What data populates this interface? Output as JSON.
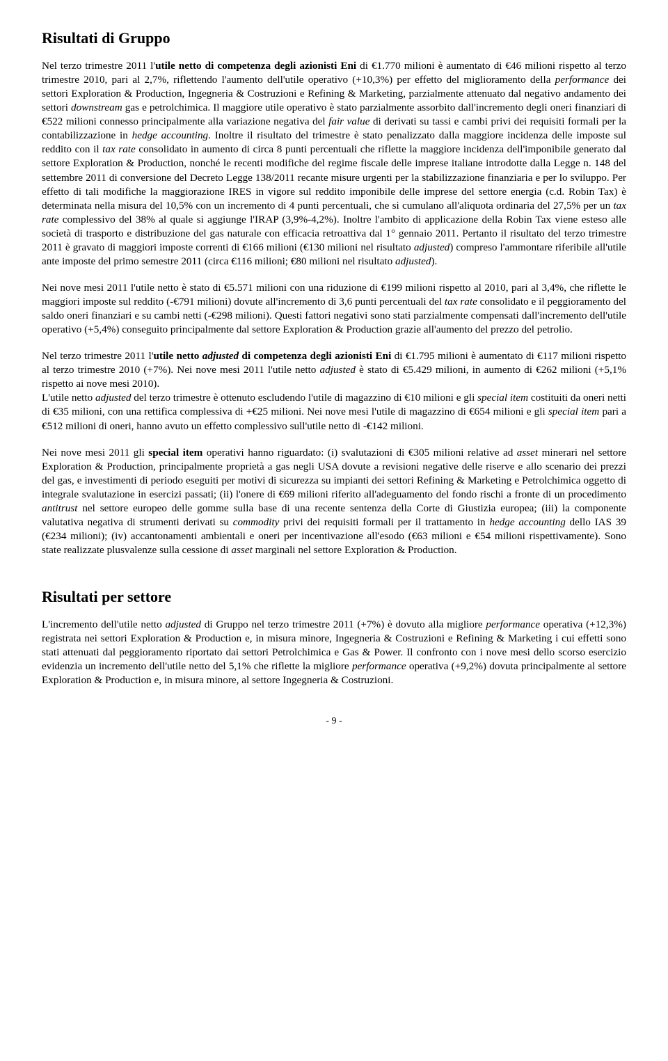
{
  "heading1": "Risultati di Gruppo",
  "para1": "Nel terzo trimestre 2011 l'<b>utile netto di competenza degli azionisti Eni</b> di €1.770 milioni è aumentato di €46 milioni rispetto al terzo trimestre 2010, pari al 2,7%, riflettendo l'aumento dell'utile operativo (+10,3%) per effetto del miglioramento della <i>performance</i> dei settori Exploration & Production, Ingegneria & Costruzioni e Refining & Marketing, parzialmente attenuato dal negativo andamento dei settori <i>downstream</i> gas e petrolchimica. Il maggiore utile operativo è stato parzialmente assorbito dall'incremento degli oneri finanziari di €522 milioni connesso principalmente alla variazione negativa del <i>fair value</i> di derivati su tassi e cambi privi dei requisiti formali per la contabilizzazione in <i>hedge accounting</i>. Inoltre il risultato del trimestre è stato penalizzato dalla maggiore incidenza delle imposte sul reddito con il <i>tax rate</i> consolidato in aumento di circa 8 punti percentuali che riflette la maggiore incidenza dell'imponibile generato dal settore Exploration & Production, nonché le recenti modifiche del regime fiscale delle imprese italiane introdotte dalla Legge n. 148 del settembre 2011 di conversione del Decreto Legge 138/2011 recante misure urgenti per la stabilizzazione finanziaria e per lo sviluppo. Per effetto di tali modifiche la maggiorazione IRES in vigore sul reddito imponibile delle imprese del settore energia (c.d. Robin Tax) è determinata nella misura del 10,5% con un incremento di 4 punti percentuali, che si cumulano all'aliquota ordinaria del 27,5% per un <i>tax rate</i> complessivo del 38% al quale si aggiunge l'IRAP (3,9%-4,2%). Inoltre l'ambito di applicazione della Robin Tax viene esteso alle società di trasporto e distribuzione del gas naturale con efficacia retroattiva dal 1° gennaio 2011. Pertanto il risultato del terzo trimestre 2011 è gravato di maggiori imposte correnti di €166 milioni (€130 milioni nel risultato <i>adjusted</i>) compreso l'ammontare riferibile all'utile ante imposte del primo semestre 2011 (circa €116 milioni; €80 milioni nel risultato <i>adjusted</i>).",
  "para2": "Nei nove mesi 2011 l'utile netto è stato di €5.571 milioni con una riduzione di €199 milioni rispetto al 2010, pari al 3,4%, che riflette le maggiori imposte sul reddito (-€791 milioni) dovute all'incremento di 3,6 punti percentuali del <i>tax rate</i> consolidato e il peggioramento del saldo oneri finanziari e su cambi netti (-€298 milioni). Questi fattori negativi sono stati parzialmente compensati dall'incremento dell'utile operativo (+5,4%) conseguito principalmente dal settore Exploration & Production grazie all'aumento del prezzo del petrolio.",
  "para3": "Nel terzo trimestre 2011 l'<b>utile netto <i>adjusted</i> di competenza degli azionisti Eni</b> di €1.795 milioni è aumentato di €117 milioni rispetto al terzo trimestre 2010 (+7%). Nei nove mesi 2011 l'utile netto <i>adjusted</i> è stato di €5.429 milioni, in aumento di €262 milioni (+5,1% rispetto ai nove mesi 2010).<br>L'utile netto <i>adjusted</i> del terzo trimestre è ottenuto escludendo l'utile di magazzino di €10 milioni e gli <i>special item</i> costituiti da oneri netti di €35 milioni, con una rettifica complessiva di +€25 milioni. Nei nove mesi l'utile di magazzino di €654 milioni e gli <i>special item</i> pari a €512 milioni di oneri, hanno avuto un effetto complessivo sull'utile netto di -€142 milioni.",
  "para4": "Nei nove mesi 2011 gli <b>special item</b> operativi hanno riguardato: (i) svalutazioni di €305 milioni relative ad <i>asset</i> minerari nel settore Exploration & Production, principalmente proprietà a gas negli USA dovute a revisioni negative delle riserve e allo scenario dei prezzi del gas, e investimenti di periodo eseguiti per motivi di sicurezza su impianti dei settori Refining & Marketing e Petrolchimica oggetto di integrale svalutazione in esercizi passati; (ii) l'onere di €69 milioni riferito all'adeguamento del fondo rischi a fronte di un procedimento <i>antitrust</i> nel settore europeo delle gomme sulla base di una recente sentenza della Corte di Giustizia europea; (iii) la componente valutativa negativa di strumenti derivati su <i>commodity</i> privi dei requisiti formali per il trattamento in <i>hedge accounting</i> dello IAS 39 (€234 milioni); (iv) accantonamenti ambientali e oneri per incentivazione all'esodo (€63 milioni e €54 milioni rispettivamente). Sono state realizzate plusvalenze sulla cessione di <i>asset</i> marginali nel settore Exploration & Production.",
  "heading2": "Risultati per settore",
  "para5": "L'incremento dell'utile netto <i>adjusted</i> di Gruppo nel terzo trimestre 2011 (+7%) è dovuto alla migliore <i>performance</i> operativa (+12,3%) registrata nei settori Exploration & Production e, in misura minore, Ingegneria & Costruzioni e Refining & Marketing i cui effetti sono stati attenuati dal peggioramento riportato dai settori Petrolchimica e Gas & Power. Il confronto con i nove mesi dello scorso esercizio evidenzia un incremento dell'utile netto del 5,1% che riflette la migliore <i>performance</i> operativa (+9,2%) dovuta principalmente al settore Exploration & Production e, in misura minore, al settore Ingegneria & Costruzioni.",
  "pageNumber": "- 9 -"
}
